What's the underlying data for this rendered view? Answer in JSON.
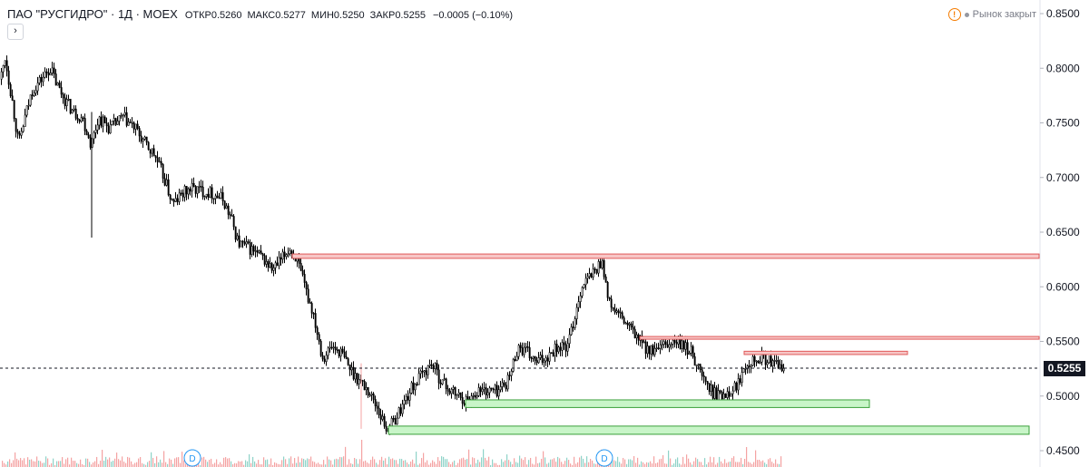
{
  "legend": {
    "symbol": "ПАО \"РУСГИДРО\" · 1Д · MOEX",
    "open_label": "ОТКР",
    "open": "0.5260",
    "high_label": "МАКС",
    "high": "0.5277",
    "low_label": "МИН",
    "low": "0.5250",
    "close_label": "ЗАКР",
    "close": "0.5255",
    "change": "−0.0005 (−0.10%)"
  },
  "collapse_glyph": "›",
  "market_status": {
    "icon": "warning-icon",
    "text": "Рынок закрыт"
  },
  "last_price_label": "0.5255",
  "colors": {
    "candle": "#000000",
    "resistance_fill": "#f7c6c6",
    "resistance_stroke": "#e05a5a",
    "support_fill": "#c8f5c8",
    "support_stroke": "#3aa03a",
    "volume": "#f4a3a3",
    "volume_up": "#8fd3c8"
  },
  "chart_data": {
    "type": "candlestick",
    "title": "ПАО \"РУСГИДРО\" · 1Д · MOEX",
    "y_axis": {
      "ticks": [
        "0.8500",
        "0.8000",
        "0.7500",
        "0.7000",
        "0.6500",
        "0.6000",
        "0.5500",
        "0.5000",
        "0.4500"
      ],
      "range": [
        0.445,
        0.85
      ],
      "position": "right"
    },
    "last_price": 0.5255,
    "dividend_markers": [
      "D",
      "D"
    ],
    "price_path": [
      [
        0,
        0.79
      ],
      [
        5,
        0.81
      ],
      [
        12,
        0.775
      ],
      [
        20,
        0.73
      ],
      [
        27,
        0.755
      ],
      [
        35,
        0.78
      ],
      [
        45,
        0.79
      ],
      [
        55,
        0.8
      ],
      [
        62,
        0.785
      ],
      [
        72,
        0.77
      ],
      [
        80,
        0.76
      ],
      [
        90,
        0.755
      ],
      [
        100,
        0.73
      ],
      [
        108,
        0.755
      ],
      [
        120,
        0.745
      ],
      [
        135,
        0.755
      ],
      [
        148,
        0.745
      ],
      [
        160,
        0.73
      ],
      [
        170,
        0.72
      ],
      [
        180,
        0.7
      ],
      [
        190,
        0.675
      ],
      [
        200,
        0.685
      ],
      [
        210,
        0.69
      ],
      [
        222,
        0.688
      ],
      [
        235,
        0.685
      ],
      [
        245,
        0.68
      ],
      [
        255,
        0.66
      ],
      [
        262,
        0.64
      ],
      [
        275,
        0.635
      ],
      [
        290,
        0.625
      ],
      [
        300,
        0.615
      ],
      [
        310,
        0.625
      ],
      [
        318,
        0.635
      ],
      [
        325,
        0.628
      ],
      [
        335,
        0.6
      ],
      [
        345,
        0.575
      ],
      [
        355,
        0.535
      ],
      [
        365,
        0.545
      ],
      [
        375,
        0.54
      ],
      [
        385,
        0.525
      ],
      [
        395,
        0.515
      ],
      [
        405,
        0.505
      ],
      [
        415,
        0.49
      ],
      [
        425,
        0.47
      ],
      [
        432,
        0.475
      ],
      [
        442,
        0.49
      ],
      [
        455,
        0.51
      ],
      [
        465,
        0.52
      ],
      [
        475,
        0.53
      ],
      [
        485,
        0.515
      ],
      [
        495,
        0.505
      ],
      [
        505,
        0.5
      ],
      [
        515,
        0.495
      ],
      [
        525,
        0.505
      ],
      [
        535,
        0.505
      ],
      [
        548,
        0.505
      ],
      [
        560,
        0.515
      ],
      [
        570,
        0.545
      ],
      [
        580,
        0.54
      ],
      [
        590,
        0.53
      ],
      [
        600,
        0.535
      ],
      [
        612,
        0.545
      ],
      [
        625,
        0.545
      ],
      [
        632,
        0.57
      ],
      [
        640,
        0.6
      ],
      [
        650,
        0.61
      ],
      [
        660,
        0.62
      ],
      [
        663,
        0.625
      ],
      [
        670,
        0.585
      ],
      [
        680,
        0.575
      ],
      [
        690,
        0.565
      ],
      [
        700,
        0.555
      ],
      [
        710,
        0.545
      ],
      [
        720,
        0.54
      ],
      [
        732,
        0.545
      ],
      [
        742,
        0.55
      ],
      [
        752,
        0.545
      ],
      [
        762,
        0.54
      ],
      [
        772,
        0.52
      ],
      [
        782,
        0.505
      ],
      [
        792,
        0.5
      ],
      [
        802,
        0.505
      ],
      [
        812,
        0.51
      ],
      [
        820,
        0.53
      ],
      [
        830,
        0.535
      ],
      [
        840,
        0.535
      ],
      [
        850,
        0.53
      ],
      [
        858,
        0.527
      ],
      [
        864,
        0.5255
      ]
    ],
    "zones": [
      {
        "kind": "resistance",
        "x_start": 322,
        "x_end": 1145,
        "y_top": 0.63,
        "y_bottom": 0.626
      },
      {
        "kind": "resistance",
        "x_start": 705,
        "x_end": 1145,
        "y_top": 0.5545,
        "y_bottom": 0.5525
      },
      {
        "kind": "resistance",
        "x_start": 820,
        "x_end": 1000,
        "y_top": 0.541,
        "y_bottom": 0.538
      },
      {
        "kind": "support",
        "x_start": 513,
        "x_end": 958,
        "y_top": 0.4965,
        "y_bottom": 0.4895
      },
      {
        "kind": "support",
        "x_start": 428,
        "x_end": 1134,
        "y_top": 0.4725,
        "y_bottom": 0.465
      }
    ]
  }
}
